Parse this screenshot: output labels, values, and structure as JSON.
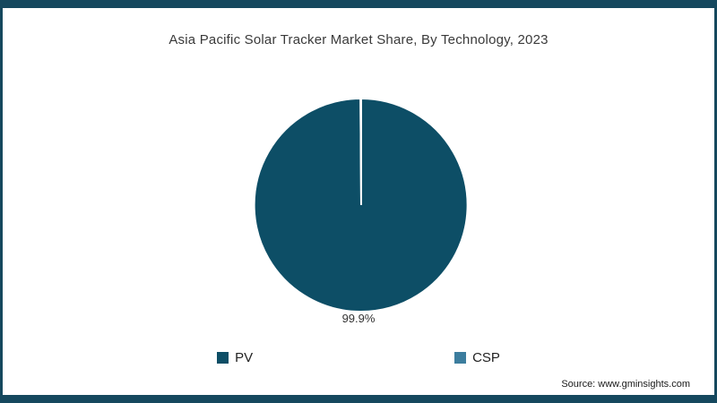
{
  "chart_data": {
    "type": "pie",
    "title": "Asia Pacific Solar Tracker Market Share, By Technology, 2023",
    "series": [
      {
        "name": "PV",
        "value": 99.9,
        "color": "#0d4e66"
      },
      {
        "name": "CSP",
        "value": 0.1,
        "color": "#3c7d9e"
      }
    ],
    "data_label": "99.9%",
    "legend_position": "bottom",
    "grid": false
  },
  "source": "Source: www.gminsights.com",
  "colors": {
    "frame": "#15485e",
    "background": "#ffffff",
    "title_text": "#3a3a3a"
  }
}
